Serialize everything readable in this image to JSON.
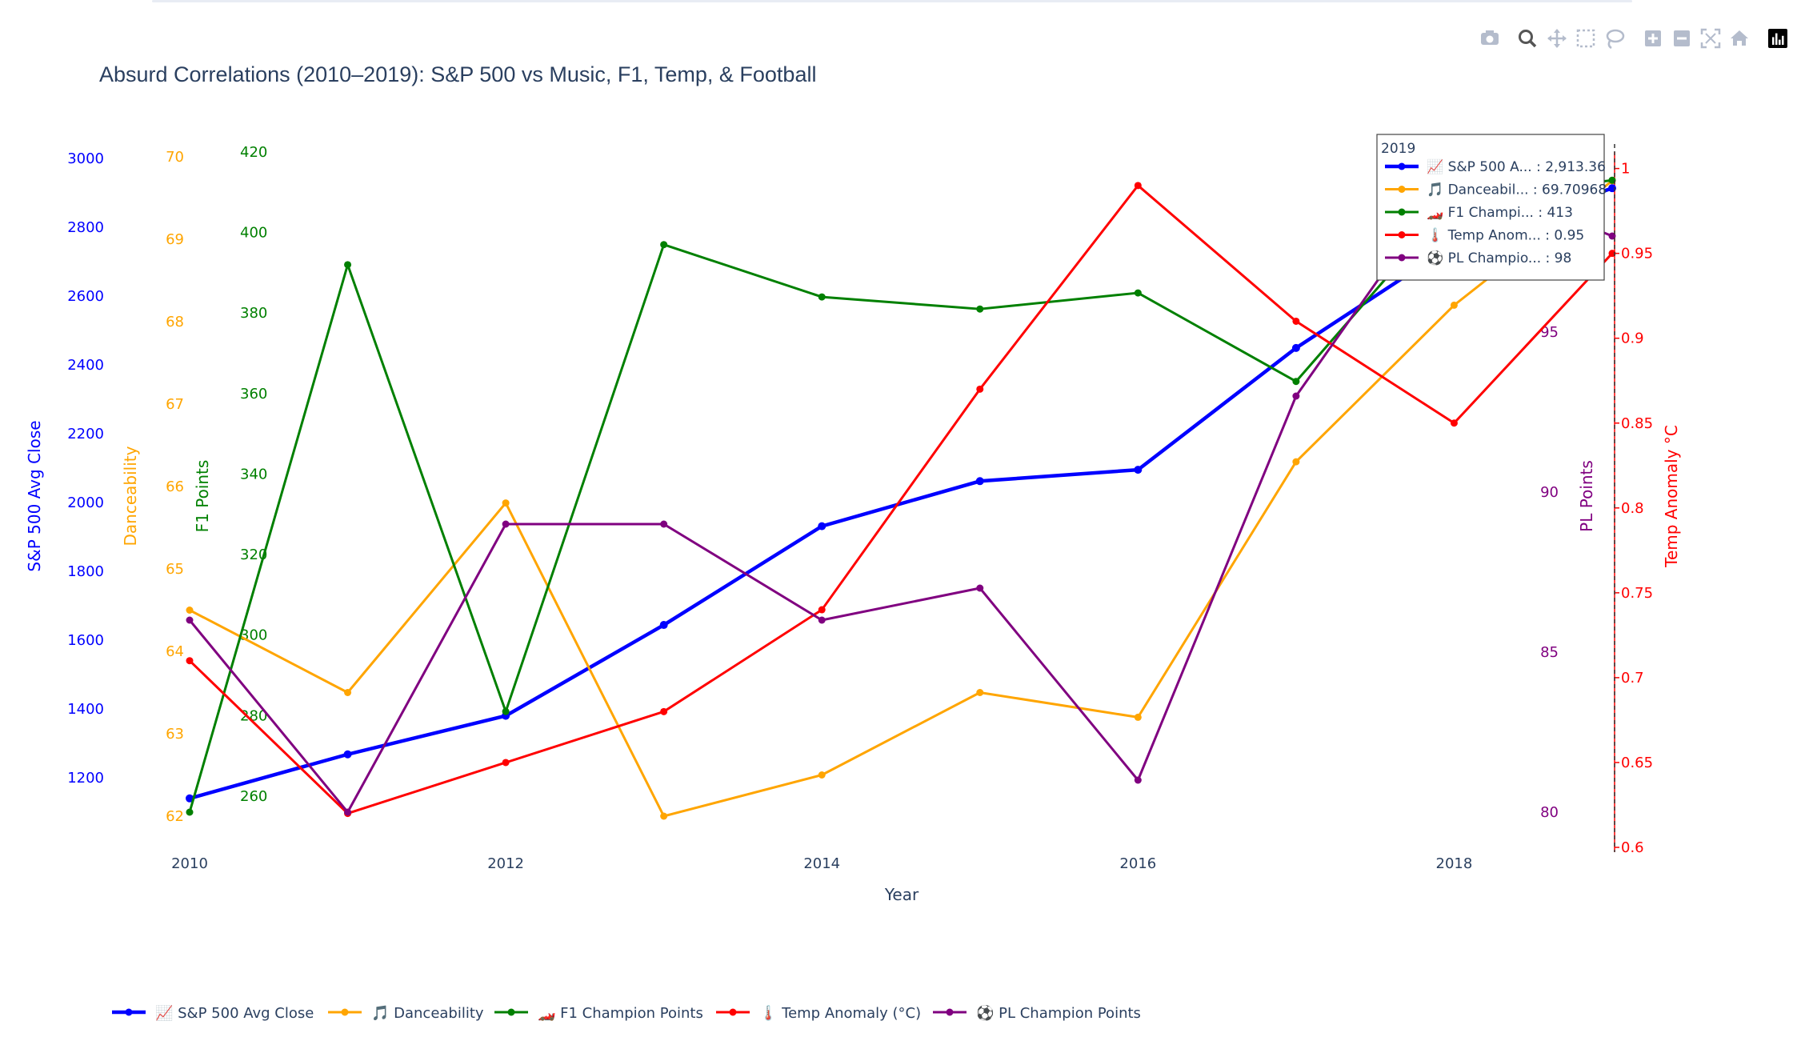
{
  "colors": {
    "sp500": "#0000ff",
    "dance": "#ffa500",
    "f1": "#008000",
    "temp": "#ff0000",
    "pl": "#800080",
    "text": "#2a3f5f",
    "modebar": "#b4bccc"
  },
  "modebar": {
    "icons": [
      "camera-icon",
      "zoom-icon",
      "pan-icon",
      "box-select-icon",
      "lasso-icon",
      "zoom-in-icon",
      "zoom-out-icon",
      "autoscale-icon",
      "reset-axes-icon",
      "plotly-logo-icon"
    ]
  },
  "hover": {
    "header": "2019",
    "rows": [
      {
        "text": "📈 S&P 500 A... : 2,913.36"
      },
      {
        "text": "🎵 Danceabil... : 69.70968"
      },
      {
        "text": "🏎️ F1 Champi... : 413"
      },
      {
        "text": "🌡️ Temp Anom... : 0.95"
      },
      {
        "text": "⚽ PL Champio... : 98"
      }
    ]
  },
  "chart_data": {
    "type": "line",
    "title": "Absurd Correlations (2010–2019): S&P 500 vs Music, F1, Temp, & Football",
    "xlabel": "Year",
    "x": [
      2010,
      2011,
      2012,
      2013,
      2014,
      2015,
      2016,
      2017,
      2018,
      2019
    ],
    "xlim": [
      2010,
      2019
    ],
    "xticks": [
      "2010",
      "2012",
      "2014",
      "2016",
      "2018"
    ],
    "grid": false,
    "legend_position": "bottom",
    "series": [
      {
        "key": "sp500",
        "name": "📈 S&P 500 Avg Close",
        "axis_label": "S&P 500 Avg Close",
        "values": [
          1140,
          1268,
          1380,
          1644,
          1931,
          2062,
          2095,
          2449,
          2750,
          2913.36
        ],
        "ylim": [
          1100,
          3030
        ],
        "ticks": [
          1200,
          1400,
          1600,
          1800,
          2000,
          2200,
          2400,
          2600,
          2800,
          3000
        ]
      },
      {
        "key": "dance",
        "name": "🎵 Danceability",
        "axis_label": "Danceability",
        "values": [
          64.5,
          63.5,
          65.8,
          62,
          62.5,
          63.5,
          63.2,
          66.3,
          68.2,
          69.70968
        ],
        "ylim": [
          62,
          70
        ],
        "ticks": [
          62,
          63,
          64,
          65,
          66,
          67,
          68,
          69,
          70
        ]
      },
      {
        "key": "f1",
        "name": "🏎️ F1 Champion Points",
        "axis_label": "F1 Points",
        "values": [
          256,
          392,
          281,
          397,
          384,
          381,
          385,
          363,
          408,
          413
        ],
        "ylim": [
          256,
          420
        ],
        "ticks": [
          260,
          280,
          300,
          320,
          340,
          360,
          380,
          400,
          420
        ]
      },
      {
        "key": "temp",
        "name": "🌡️ Temp Anomaly (°C)",
        "axis_label": "Temp Anomaly °C",
        "values": [
          0.71,
          0.62,
          0.65,
          0.68,
          0.74,
          0.87,
          0.99,
          0.91,
          0.85,
          0.95
        ],
        "ylim": [
          0.6,
          1.005
        ],
        "ticks": [
          0.6,
          0.65,
          0.7,
          0.75,
          0.8,
          0.85,
          0.9,
          0.95,
          1
        ]
      },
      {
        "key": "pl",
        "name": "⚽ PL Champion Points",
        "axis_label": "PL Points",
        "values": [
          86,
          80,
          89,
          89,
          86,
          87,
          81,
          93,
          100,
          98
        ],
        "ylim": [
          80,
          100
        ],
        "ticks": [
          80,
          85,
          90,
          95
        ]
      }
    ]
  }
}
